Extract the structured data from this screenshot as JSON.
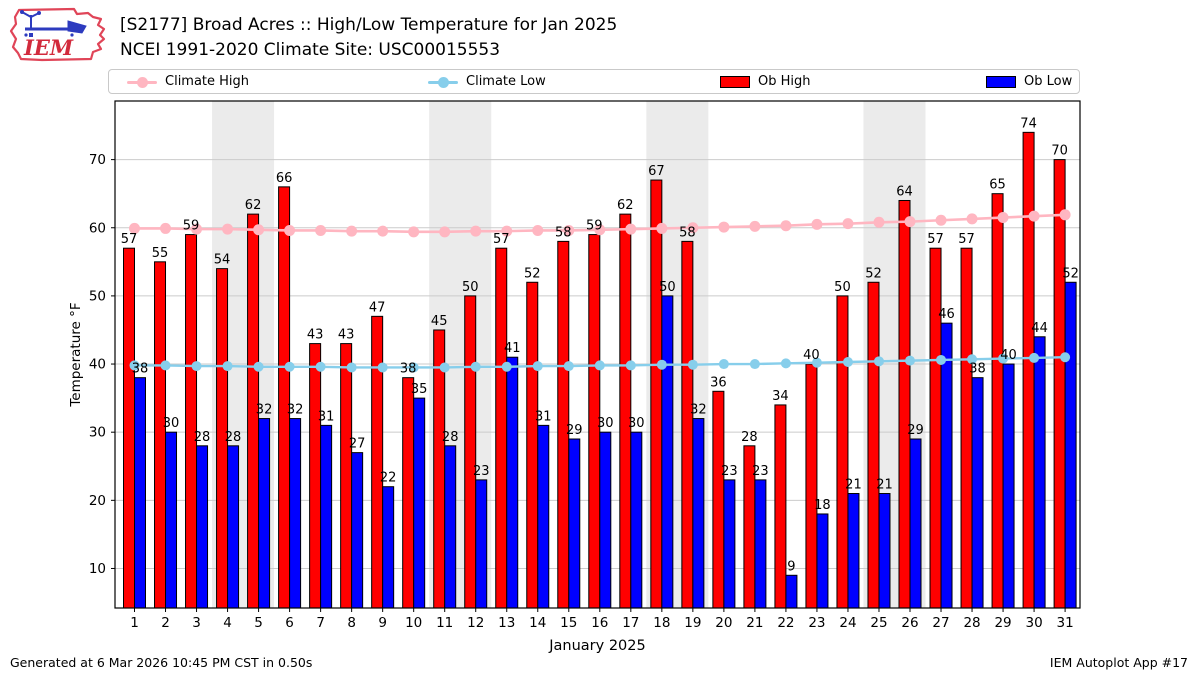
{
  "header": {
    "title": "[S2177] Broad Acres :: High/Low Temperature for Jan 2025",
    "subtitle": "NCEI 1991-2020 Climate Site: USC00015553",
    "logo_text": "IEM"
  },
  "legend": {
    "items": [
      {
        "label": "Climate High",
        "type": "line",
        "color": "#ffb6c1"
      },
      {
        "label": "Climate Low",
        "type": "line",
        "color": "#87ceeb"
      },
      {
        "label": "Ob High",
        "type": "patch",
        "color": "#ff0000"
      },
      {
        "label": "Ob Low",
        "type": "patch",
        "color": "#0000ff"
      }
    ]
  },
  "chart_data": {
    "type": "bar",
    "title": "[S2177] Broad Acres :: High/Low Temperature for Jan 2025",
    "subtitle": "NCEI 1991-2020 Climate Site: USC00015553",
    "xlabel": "January 2025",
    "ylabel": "Temperature °F",
    "ylim": [
      4.2,
      78.6
    ],
    "yticks": [
      10,
      20,
      30,
      40,
      50,
      60,
      70
    ],
    "grid": "horizontal",
    "legend_position": "top",
    "x": [
      1,
      2,
      3,
      4,
      5,
      6,
      7,
      8,
      9,
      10,
      11,
      12,
      13,
      14,
      15,
      16,
      17,
      18,
      19,
      20,
      21,
      22,
      23,
      24,
      25,
      26,
      27,
      28,
      29,
      30,
      31
    ],
    "weekend_bands": [
      [
        4,
        5
      ],
      [
        11,
        12
      ],
      [
        18,
        19
      ],
      [
        25,
        26
      ]
    ],
    "series": [
      {
        "name": "Ob High",
        "type": "bar",
        "color": "#ff0000",
        "values": [
          57,
          55,
          59,
          54,
          62,
          66,
          43,
          43,
          47,
          38,
          45,
          50,
          57,
          52,
          58,
          59,
          62,
          67,
          58,
          36,
          28,
          34,
          40,
          50,
          52,
          64,
          57,
          57,
          65,
          74,
          70
        ]
      },
      {
        "name": "Ob Low",
        "type": "bar",
        "color": "#0000ff",
        "values": [
          38,
          30,
          28,
          28,
          32,
          32,
          31,
          27,
          22,
          35,
          28,
          23,
          41,
          31,
          29,
          30,
          30,
          50,
          32,
          23,
          23,
          9,
          18,
          21,
          21,
          29,
          46,
          38,
          40,
          44,
          52
        ]
      },
      {
        "name": "Climate High",
        "type": "line",
        "color": "#ffb6c1",
        "values": [
          59.9,
          59.9,
          59.8,
          59.8,
          59.7,
          59.6,
          59.6,
          59.5,
          59.5,
          59.4,
          59.4,
          59.5,
          59.5,
          59.6,
          59.6,
          59.7,
          59.8,
          59.9,
          60.0,
          60.1,
          60.2,
          60.3,
          60.5,
          60.6,
          60.8,
          60.9,
          61.1,
          61.3,
          61.5,
          61.7,
          61.9
        ]
      },
      {
        "name": "Climate Low",
        "type": "line",
        "color": "#87ceeb",
        "values": [
          39.8,
          39.8,
          39.7,
          39.7,
          39.6,
          39.6,
          39.6,
          39.5,
          39.5,
          39.5,
          39.5,
          39.6,
          39.6,
          39.7,
          39.7,
          39.8,
          39.8,
          39.9,
          39.9,
          40.0,
          40.0,
          40.1,
          40.2,
          40.3,
          40.4,
          40.5,
          40.6,
          40.7,
          40.8,
          40.9,
          41.0
        ]
      }
    ],
    "colors": {
      "weekend_band": "#ebebeb",
      "gridline": "#cbcbcb",
      "axis": "#000000"
    }
  },
  "footer": {
    "left": "Generated at 6 Mar 2026 10:45 PM CST in 0.50s",
    "right": "IEM Autoplot App #17"
  }
}
